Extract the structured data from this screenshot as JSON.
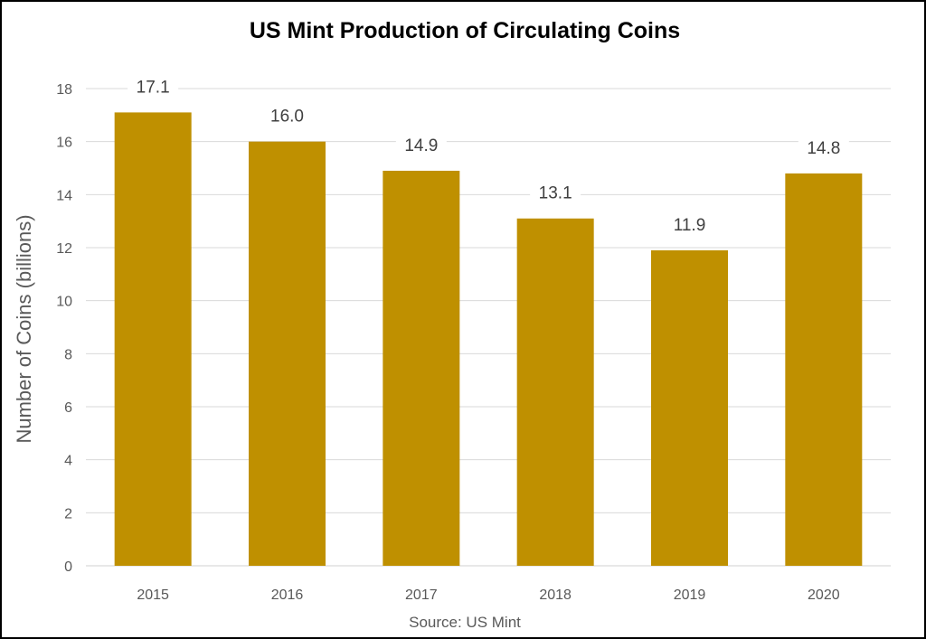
{
  "chart_data": {
    "type": "bar",
    "title": "US Mint Production of Circulating Coins",
    "xlabel": "",
    "ylabel": "Number of Coins (billions)",
    "source": "Source: US Mint",
    "categories": [
      "2015",
      "2016",
      "2017",
      "2018",
      "2019",
      "2020"
    ],
    "values": [
      17.1,
      16.0,
      14.9,
      13.1,
      11.9,
      14.8
    ],
    "data_labels": [
      "17.1",
      "16.0",
      "14.9",
      "13.1",
      "11.9",
      "14.8"
    ],
    "ylim": [
      0,
      18
    ],
    "yticks": [
      "0",
      "2",
      "4",
      "6",
      "8",
      "10",
      "12",
      "14",
      "16",
      "18"
    ],
    "grid": true,
    "legend": "none",
    "bar_color": "#BF9000"
  }
}
